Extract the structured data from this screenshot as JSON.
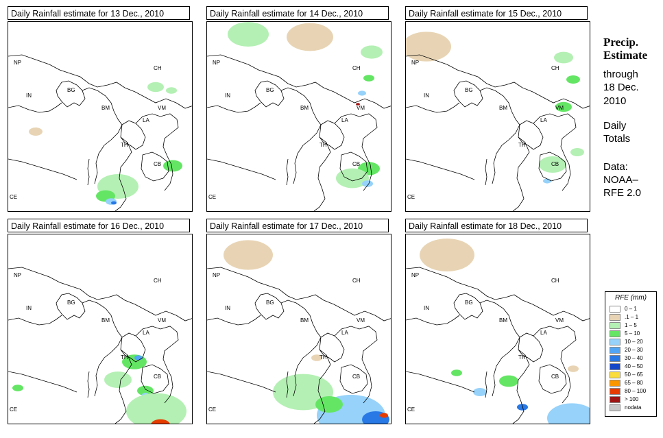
{
  "panels": [
    {
      "title": "Daily Rainfall estimate for  13 Dec., 2010"
    },
    {
      "title": "Daily Rainfall estimate for  14 Dec., 2010"
    },
    {
      "title": "Daily Rainfall estimate for  15 Dec., 2010"
    },
    {
      "title": "Daily Rainfall estimate for  16 Dec., 2010"
    },
    {
      "title": "Daily Rainfall estimate for  17 Dec., 2010"
    },
    {
      "title": "Daily Rainfall estimate for  18 Dec., 2010"
    }
  ],
  "country_labels": [
    "NP",
    "CH",
    "IN",
    "BG",
    "BM",
    "VM",
    "LA",
    "TH",
    "CB",
    "CE"
  ],
  "side": {
    "heading_1": "Precip.",
    "heading_2": "Estimate",
    "line_1": "through",
    "line_2": "18 Dec.",
    "line_3": "2010",
    "line_4": "Daily",
    "line_5": "Totals",
    "line_6": "Data:",
    "line_7": "NOAA–",
    "line_8": "RFE 2.0"
  },
  "legend": {
    "title": "RFE (mm)",
    "items": [
      {
        "label": "0 – 1",
        "color": "#ffffff"
      },
      {
        "label": ".1 – 1",
        "color": "#e8d4b4"
      },
      {
        "label": "1 – 5",
        "color": "#b4f0b4"
      },
      {
        "label": "5 – 10",
        "color": "#64e664"
      },
      {
        "label": "10 – 20",
        "color": "#96d2fa"
      },
      {
        "label": "20 – 30",
        "color": "#50a5f5"
      },
      {
        "label": "30 – 40",
        "color": "#2878e6"
      },
      {
        "label": "40 – 50",
        "color": "#1446c8"
      },
      {
        "label": "50 – 65",
        "color": "#fadc3c"
      },
      {
        "label": "65 – 80",
        "color": "#fa9600"
      },
      {
        "label": "80 – 100",
        "color": "#e63c00"
      },
      {
        "label": "> 100",
        "color": "#a01414"
      },
      {
        "label": "nodata",
        "color": "#c8c8c8"
      }
    ]
  }
}
